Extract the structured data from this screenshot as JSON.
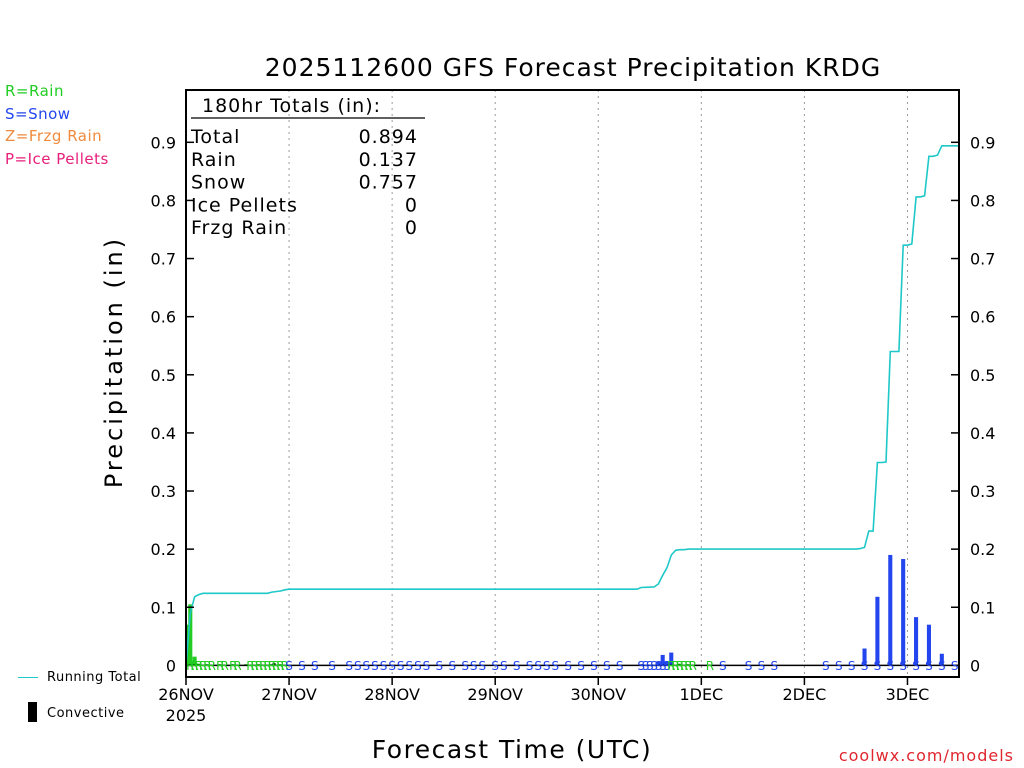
{
  "legend": {
    "rain": {
      "label": "R=Rain",
      "color": "#22cc22"
    },
    "snow": {
      "label": "S=Snow",
      "color": "#2245ee"
    },
    "frzg": {
      "label": "Z=Frzg Rain",
      "color": "#f08a3c"
    },
    "ice": {
      "label": "P=Ice Pellets",
      "color": "#e8207c"
    }
  },
  "key": {
    "running_total_label": "Running Total",
    "running_total_color": "#1fc8c8",
    "convective_label": "Convective"
  },
  "credit": "coolwx.com/models",
  "totals_box": {
    "title": "180hr Totals (in):",
    "rows": [
      {
        "label": "Total",
        "value": "0.894"
      },
      {
        "label": "Rain",
        "value": "0.137"
      },
      {
        "label": "Snow",
        "value": "0.757"
      },
      {
        "label": "Ice Pellets",
        "value": "0"
      },
      {
        "label": "Frzg Rain",
        "value": "0"
      }
    ]
  },
  "chart_data": {
    "type": "bar",
    "title": "2025112600 GFS Forecast Precipitation KRDG",
    "xlabel": "Forecast Time (UTC)",
    "ylabel": "Precipitation (in)",
    "x_unit": "forecast hour",
    "xlim": [
      0,
      180
    ],
    "ylim": [
      -0.02,
      0.99
    ],
    "yticks": [
      0,
      0.1,
      0.2,
      0.3,
      0.4,
      0.5,
      0.6,
      0.7,
      0.8,
      0.9
    ],
    "ytick_labels": [
      "0",
      "0.1",
      "0.2",
      "0.3",
      "0.4",
      "0.5",
      "0.6",
      "0.7",
      "0.8",
      "0.9"
    ],
    "xticks": [
      {
        "hour": 0,
        "label": "26NOV"
      },
      {
        "hour": 24,
        "label": "27NOV"
      },
      {
        "hour": 48,
        "label": "28NOV"
      },
      {
        "hour": 72,
        "label": "29NOV"
      },
      {
        "hour": 96,
        "label": "30NOV"
      },
      {
        "hour": 120,
        "label": "1DEC"
      },
      {
        "hour": 144,
        "label": "2DEC"
      },
      {
        "hour": 168,
        "label": "3DEC"
      }
    ],
    "year_label": "2025",
    "series": [
      {
        "name": "Rain",
        "color": "#22cc22",
        "points": [
          {
            "hour": 0.5,
            "value": 0.07
          },
          {
            "hour": 1,
            "value": 0.105
          },
          {
            "hour": 2,
            "value": 0.015
          },
          {
            "hour": 3,
            "value": 0.003
          },
          {
            "hour": 5,
            "value": 0.002
          },
          {
            "hour": 8,
            "value": 0.002
          },
          {
            "hour": 11,
            "value": 0.002
          },
          {
            "hour": 14,
            "value": 0.002
          },
          {
            "hour": 17,
            "value": 0.002
          },
          {
            "hour": 20,
            "value": 0.002
          },
          {
            "hour": 22,
            "value": 0.002
          },
          {
            "hour": 113,
            "value": 0.002
          },
          {
            "hour": 115,
            "value": 0.003
          },
          {
            "hour": 117,
            "value": 0.002
          },
          {
            "hour": 119,
            "value": 0.001
          }
        ]
      },
      {
        "name": "Snow",
        "color": "#2245ee",
        "points": [
          {
            "hour": 106,
            "value": 0.002
          },
          {
            "hour": 110,
            "value": 0.006
          },
          {
            "hour": 111,
            "value": 0.018
          },
          {
            "hour": 112,
            "value": 0.007
          },
          {
            "hour": 113,
            "value": 0.022
          },
          {
            "hour": 158,
            "value": 0.029
          },
          {
            "hour": 161,
            "value": 0.118
          },
          {
            "hour": 164,
            "value": 0.19
          },
          {
            "hour": 167,
            "value": 0.183
          },
          {
            "hour": 170,
            "value": 0.083
          },
          {
            "hour": 173,
            "value": 0.07
          },
          {
            "hour": 176,
            "value": 0.02
          }
        ]
      },
      {
        "name": "Convective",
        "color": "#000000",
        "points": [
          {
            "hour": 20.5,
            "value": 0.004
          }
        ]
      }
    ],
    "running_total": {
      "name": "Running Total",
      "color": "#1fc8c8",
      "points": [
        [
          0,
          0
        ],
        [
          1,
          0.09
        ],
        [
          2,
          0.118
        ],
        [
          3,
          0.122
        ],
        [
          4,
          0.124
        ],
        [
          19,
          0.124
        ],
        [
          20,
          0.126
        ],
        [
          22,
          0.128
        ],
        [
          23,
          0.13
        ],
        [
          24,
          0.131
        ],
        [
          105,
          0.131
        ],
        [
          106,
          0.134
        ],
        [
          109,
          0.135
        ],
        [
          110,
          0.14
        ],
        [
          111,
          0.155
        ],
        [
          112,
          0.168
        ],
        [
          113,
          0.19
        ],
        [
          114,
          0.198
        ],
        [
          115,
          0.199
        ],
        [
          116,
          0.199
        ],
        [
          117,
          0.2
        ],
        [
          156,
          0.2
        ],
        [
          157,
          0.201
        ],
        [
          158,
          0.203
        ],
        [
          159,
          0.231
        ],
        [
          160,
          0.231
        ],
        [
          161,
          0.349
        ],
        [
          162,
          0.349
        ],
        [
          163,
          0.35
        ],
        [
          164,
          0.54
        ],
        [
          165,
          0.54
        ],
        [
          166,
          0.54
        ],
        [
          167,
          0.723
        ],
        [
          168,
          0.723
        ],
        [
          169,
          0.725
        ],
        [
          170,
          0.806
        ],
        [
          171,
          0.806
        ],
        [
          172,
          0.808
        ],
        [
          173,
          0.876
        ],
        [
          174,
          0.876
        ],
        [
          175,
          0.878
        ],
        [
          176,
          0.894
        ],
        [
          177,
          0.894
        ],
        [
          178,
          0.894
        ],
        [
          180,
          0.894
        ]
      ]
    },
    "ptype_markers": [
      {
        "hour": 1,
        "type": "R"
      },
      {
        "hour": 2,
        "type": "R"
      },
      {
        "hour": 3,
        "type": "R"
      },
      {
        "hour": 4,
        "type": "R"
      },
      {
        "hour": 5,
        "type": "R"
      },
      {
        "hour": 6,
        "type": "R"
      },
      {
        "hour": 8,
        "type": "R"
      },
      {
        "hour": 9,
        "type": "R"
      },
      {
        "hour": 11,
        "type": "R"
      },
      {
        "hour": 12,
        "type": "R"
      },
      {
        "hour": 15,
        "type": "R"
      },
      {
        "hour": 16,
        "type": "R"
      },
      {
        "hour": 17,
        "type": "R"
      },
      {
        "hour": 18,
        "type": "R"
      },
      {
        "hour": 19,
        "type": "R"
      },
      {
        "hour": 20,
        "type": "R"
      },
      {
        "hour": 21,
        "type": "R"
      },
      {
        "hour": 22,
        "type": "R"
      },
      {
        "hour": 23,
        "type": "R"
      },
      {
        "hour": 24,
        "type": "S"
      },
      {
        "hour": 27,
        "type": "S"
      },
      {
        "hour": 30,
        "type": "S"
      },
      {
        "hour": 34,
        "type": "S"
      },
      {
        "hour": 38,
        "type": "S"
      },
      {
        "hour": 40,
        "type": "S"
      },
      {
        "hour": 42,
        "type": "S"
      },
      {
        "hour": 44,
        "type": "S"
      },
      {
        "hour": 46,
        "type": "S"
      },
      {
        "hour": 48,
        "type": "S"
      },
      {
        "hour": 50,
        "type": "S"
      },
      {
        "hour": 52,
        "type": "S"
      },
      {
        "hour": 54,
        "type": "S"
      },
      {
        "hour": 56,
        "type": "S"
      },
      {
        "hour": 59,
        "type": "S"
      },
      {
        "hour": 62,
        "type": "S"
      },
      {
        "hour": 65,
        "type": "S"
      },
      {
        "hour": 67,
        "type": "S"
      },
      {
        "hour": 69,
        "type": "S"
      },
      {
        "hour": 72,
        "type": "S"
      },
      {
        "hour": 74,
        "type": "S"
      },
      {
        "hour": 77,
        "type": "S"
      },
      {
        "hour": 80,
        "type": "S"
      },
      {
        "hour": 82,
        "type": "S"
      },
      {
        "hour": 84,
        "type": "S"
      },
      {
        "hour": 86,
        "type": "S"
      },
      {
        "hour": 89,
        "type": "S"
      },
      {
        "hour": 92,
        "type": "S"
      },
      {
        "hour": 95,
        "type": "S"
      },
      {
        "hour": 98,
        "type": "S"
      },
      {
        "hour": 101,
        "type": "S"
      },
      {
        "hour": 106,
        "type": "S"
      },
      {
        "hour": 107,
        "type": "S"
      },
      {
        "hour": 108,
        "type": "S"
      },
      {
        "hour": 109,
        "type": "S"
      },
      {
        "hour": 110,
        "type": "S"
      },
      {
        "hour": 111,
        "type": "S"
      },
      {
        "hour": 112,
        "type": "S"
      },
      {
        "hour": 113,
        "type": "R"
      },
      {
        "hour": 114,
        "type": "R"
      },
      {
        "hour": 115,
        "type": "R"
      },
      {
        "hour": 116,
        "type": "R"
      },
      {
        "hour": 117,
        "type": "R"
      },
      {
        "hour": 118,
        "type": "R"
      },
      {
        "hour": 122,
        "type": "R"
      },
      {
        "hour": 125,
        "type": "S"
      },
      {
        "hour": 131,
        "type": "S"
      },
      {
        "hour": 134,
        "type": "S"
      },
      {
        "hour": 137,
        "type": "S"
      },
      {
        "hour": 149,
        "type": "S"
      },
      {
        "hour": 152,
        "type": "S"
      },
      {
        "hour": 155,
        "type": "S"
      },
      {
        "hour": 158,
        "type": "S"
      },
      {
        "hour": 161,
        "type": "S"
      },
      {
        "hour": 164,
        "type": "S"
      },
      {
        "hour": 167,
        "type": "S"
      },
      {
        "hour": 170,
        "type": "S"
      },
      {
        "hour": 173,
        "type": "S"
      },
      {
        "hour": 176,
        "type": "S"
      },
      {
        "hour": 179,
        "type": "S"
      }
    ]
  }
}
